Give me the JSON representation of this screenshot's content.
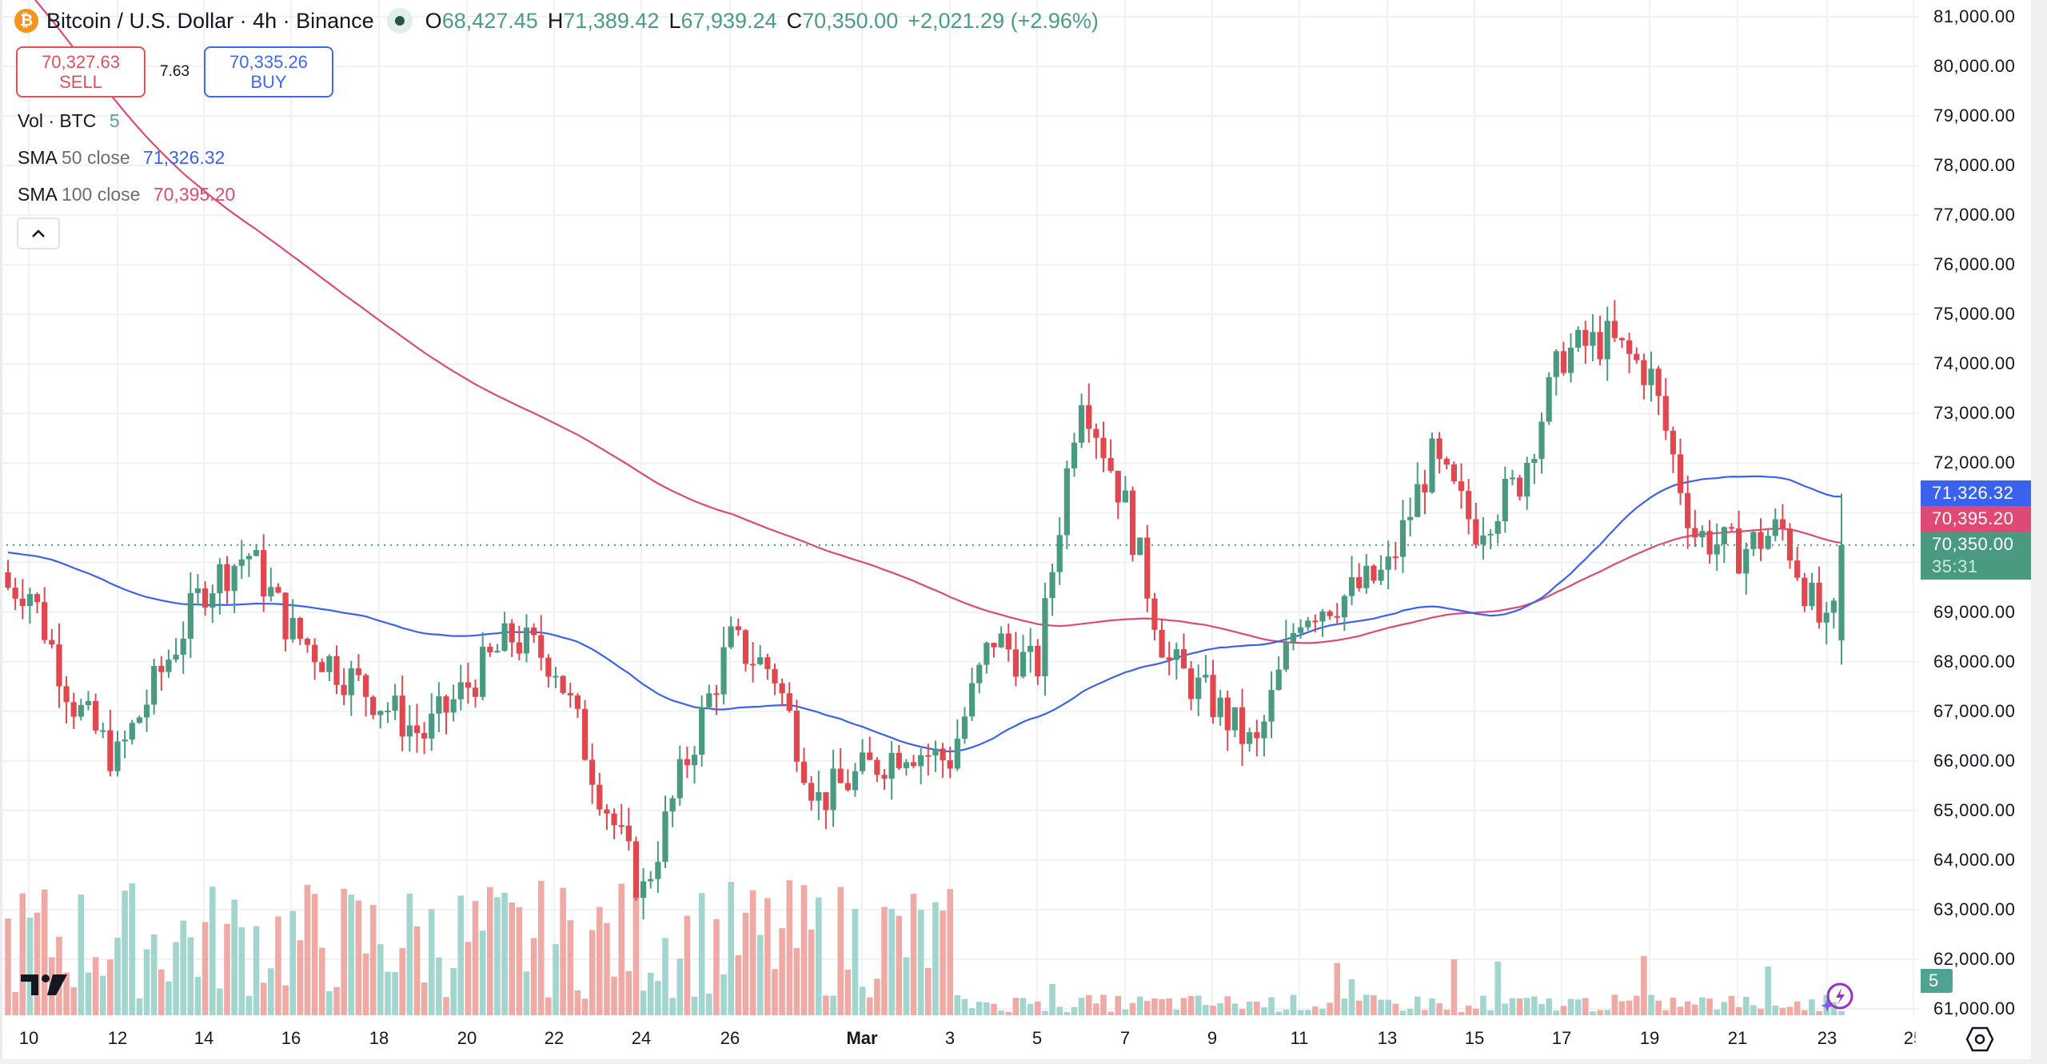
{
  "header": {
    "coin_icon": "bitcoin-icon",
    "title": "Bitcoin / U.S. Dollar · 4h · Binance",
    "ohlc": {
      "open_label": "O",
      "open": "68,427.45",
      "high_label": "H",
      "high": "71,389.42",
      "low_label": "L",
      "low": "67,939.24",
      "close_label": "C",
      "close": "70,350.00",
      "change": "+2,021.29 (+2.96%)"
    }
  },
  "trade": {
    "sell_price": "70,327.63",
    "sell_label": "SELL",
    "spread": "7.63",
    "buy_price": "70,335.26",
    "buy_label": "BUY"
  },
  "legend": {
    "vol_label": "Vol · BTC",
    "vol_value": "5",
    "sma50_name": "SMA",
    "sma50_params": "50 close",
    "sma50_value": "71,326.32",
    "sma100_name": "SMA",
    "sma100_params": "100 close",
    "sma100_value": "70,395.20"
  },
  "price_axis": {
    "labels": [
      "81,000.00",
      "80,000.00",
      "79,000.00",
      "78,000.00",
      "77,000.00",
      "76,000.00",
      "75,000.00",
      "74,000.00",
      "73,000.00",
      "72,000.00",
      "69,000.00",
      "68,000.00",
      "67,000.00",
      "66,000.00",
      "65,000.00",
      "64,000.00",
      "63,000.00",
      "62,000.00",
      "61,000.00"
    ],
    "tags": {
      "sma50": "71,326.32",
      "sma100": "70,395.20",
      "last_price": "70,350.00",
      "countdown": "35:31",
      "volume": "5"
    }
  },
  "time_axis": {
    "labels": [
      "10",
      "12",
      "14",
      "16",
      "18",
      "20",
      "22",
      "24",
      "26",
      "Mar",
      "3",
      "5",
      "7",
      "9",
      "11",
      "13",
      "15",
      "17",
      "19",
      "21",
      "23",
      "25"
    ]
  },
  "colors": {
    "up": "#4a9a82",
    "down": "#e0474f",
    "vol_up": "#a3d5cf",
    "vol_down": "#efaaa6",
    "sma50": "#3b62ee",
    "sma100": "#de4a75",
    "last_price": "#4a9a82",
    "grid": "#f0f1f3"
  },
  "chart_data": {
    "type": "candlestick",
    "title": "Bitcoin / U.S. Dollar · 4h · Binance",
    "timeframe": "4h",
    "x_ticks": [
      "10",
      "12",
      "14",
      "16",
      "18",
      "20",
      "22",
      "24",
      "26",
      "Mar",
      "3",
      "5",
      "7",
      "9",
      "11",
      "13",
      "15",
      "17",
      "19",
      "21",
      "23",
      "25"
    ],
    "ylim": [
      61000,
      81000
    ],
    "y_ticks": [
      61000,
      62000,
      63000,
      64000,
      65000,
      66000,
      67000,
      68000,
      69000,
      70000,
      71000,
      72000,
      73000,
      74000,
      75000,
      76000,
      77000,
      78000,
      79000,
      80000,
      81000
    ],
    "last_bar": {
      "open": 68427.45,
      "high": 71389.42,
      "low": 67939.24,
      "close": 70350.0,
      "change": 2021.29,
      "change_pct": 2.96
    },
    "indicators": [
      {
        "name": "SMA 50 close",
        "last": 71326.32
      },
      {
        "name": "SMA 100 close",
        "last": 70395.2
      },
      {
        "name": "Vol · BTC",
        "last": 5
      }
    ],
    "price_path_keypoints": [
      {
        "date": "Feb 10",
        "close": 69500
      },
      {
        "date": "Feb 11",
        "close": 67200
      },
      {
        "date": "Feb 12",
        "close": 66000
      },
      {
        "date": "Feb 14",
        "close": 69500
      },
      {
        "date": "Feb 15",
        "close": 70200
      },
      {
        "date": "Feb 16",
        "close": 68600
      },
      {
        "date": "Feb 18",
        "close": 67200
      },
      {
        "date": "Feb 19",
        "close": 66500
      },
      {
        "date": "Feb 21",
        "close": 68500
      },
      {
        "date": "Feb 22",
        "close": 68000
      },
      {
        "date": "Feb 23",
        "close": 65500
      },
      {
        "date": "Feb 24",
        "close": 63300
      },
      {
        "date": "Feb 25",
        "close": 66000
      },
      {
        "date": "Feb 26",
        "close": 68400
      },
      {
        "date": "Feb 27",
        "close": 67800
      },
      {
        "date": "Feb 28",
        "close": 65200
      },
      {
        "date": "Mar 1",
        "close": 66300
      },
      {
        "date": "Mar 2",
        "close": 66000
      },
      {
        "date": "Mar 3",
        "close": 68500
      },
      {
        "date": "Mar 4",
        "close": 67800
      },
      {
        "date": "Mar 5",
        "close": 73600
      },
      {
        "date": "Mar 6",
        "close": 71200
      },
      {
        "date": "Mar 7",
        "close": 68000
      },
      {
        "date": "Mar 8",
        "close": 67200
      },
      {
        "date": "Mar 9",
        "close": 66200
      },
      {
        "date": "Mar 10",
        "close": 69000
      },
      {
        "date": "Mar 11",
        "close": 69300
      },
      {
        "date": "Mar 12",
        "close": 69800
      },
      {
        "date": "Mar 13",
        "close": 72100
      },
      {
        "date": "Mar 14",
        "close": 70700
      },
      {
        "date": "Mar 15",
        "close": 71600
      },
      {
        "date": "Mar 16",
        "close": 74200
      },
      {
        "date": "Mar 17",
        "close": 74500
      },
      {
        "date": "Mar 18",
        "close": 73800
      },
      {
        "date": "Mar 19",
        "close": 70600
      },
      {
        "date": "Mar 20",
        "close": 70200
      },
      {
        "date": "Mar 21",
        "close": 70700
      },
      {
        "date": "Mar 22",
        "close": 68500
      },
      {
        "date": "Mar 23",
        "close": 70350
      }
    ]
  },
  "icons": {
    "logo": "tradingview-logo-icon",
    "settings": "gear-icon",
    "assistant": "lightning-bolt-icon",
    "collapse": "chevron-up-icon"
  }
}
